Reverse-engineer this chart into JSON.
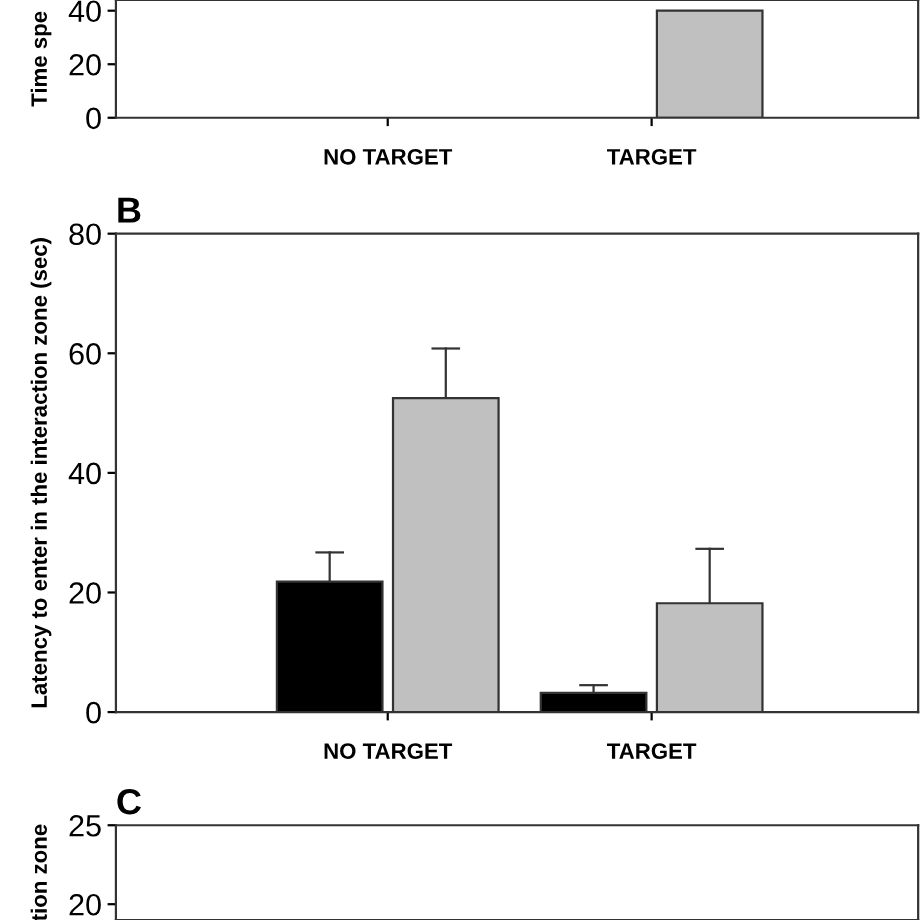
{
  "chart_data": [
    {
      "type": "bar",
      "ylabel": "Time spe",
      "categories": [
        "NO TARGET",
        "TARGET"
      ],
      "ylim": [
        0,
        44
      ],
      "yticks": [
        0,
        20,
        40
      ],
      "series": [
        {
          "values": [
            null,
            null
          ]
        },
        {
          "color": "#c0c0c0",
          "values": [
            null,
            40
          ]
        }
      ]
    },
    {
      "type": "bar",
      "title": "B",
      "ylabel": "Latency to enter in the interaction zone (sec)",
      "categories": [
        "NO TARGET",
        "TARGET"
      ],
      "ylim": [
        0,
        80
      ],
      "yticks": [
        0,
        20,
        40,
        60,
        80
      ],
      "series": [
        {
          "color": "#000000",
          "values": [
            21.8,
            3.2
          ],
          "errors": [
            [
              21.8,
              26.7
            ],
            [
              3.2,
              4.5
            ]
          ]
        },
        {
          "color": "#c0c0c0",
          "values": [
            52.5,
            18.2
          ],
          "errors": [
            [
              52.5,
              60.8
            ],
            [
              18.2,
              27.3
            ]
          ]
        }
      ]
    },
    {
      "type": "bar",
      "title": "C",
      "ylabel": "tion zone",
      "categories": [
        null,
        null
      ],
      "ylim": [
        19,
        25
      ],
      "yticks": [
        20,
        25
      ]
    }
  ]
}
